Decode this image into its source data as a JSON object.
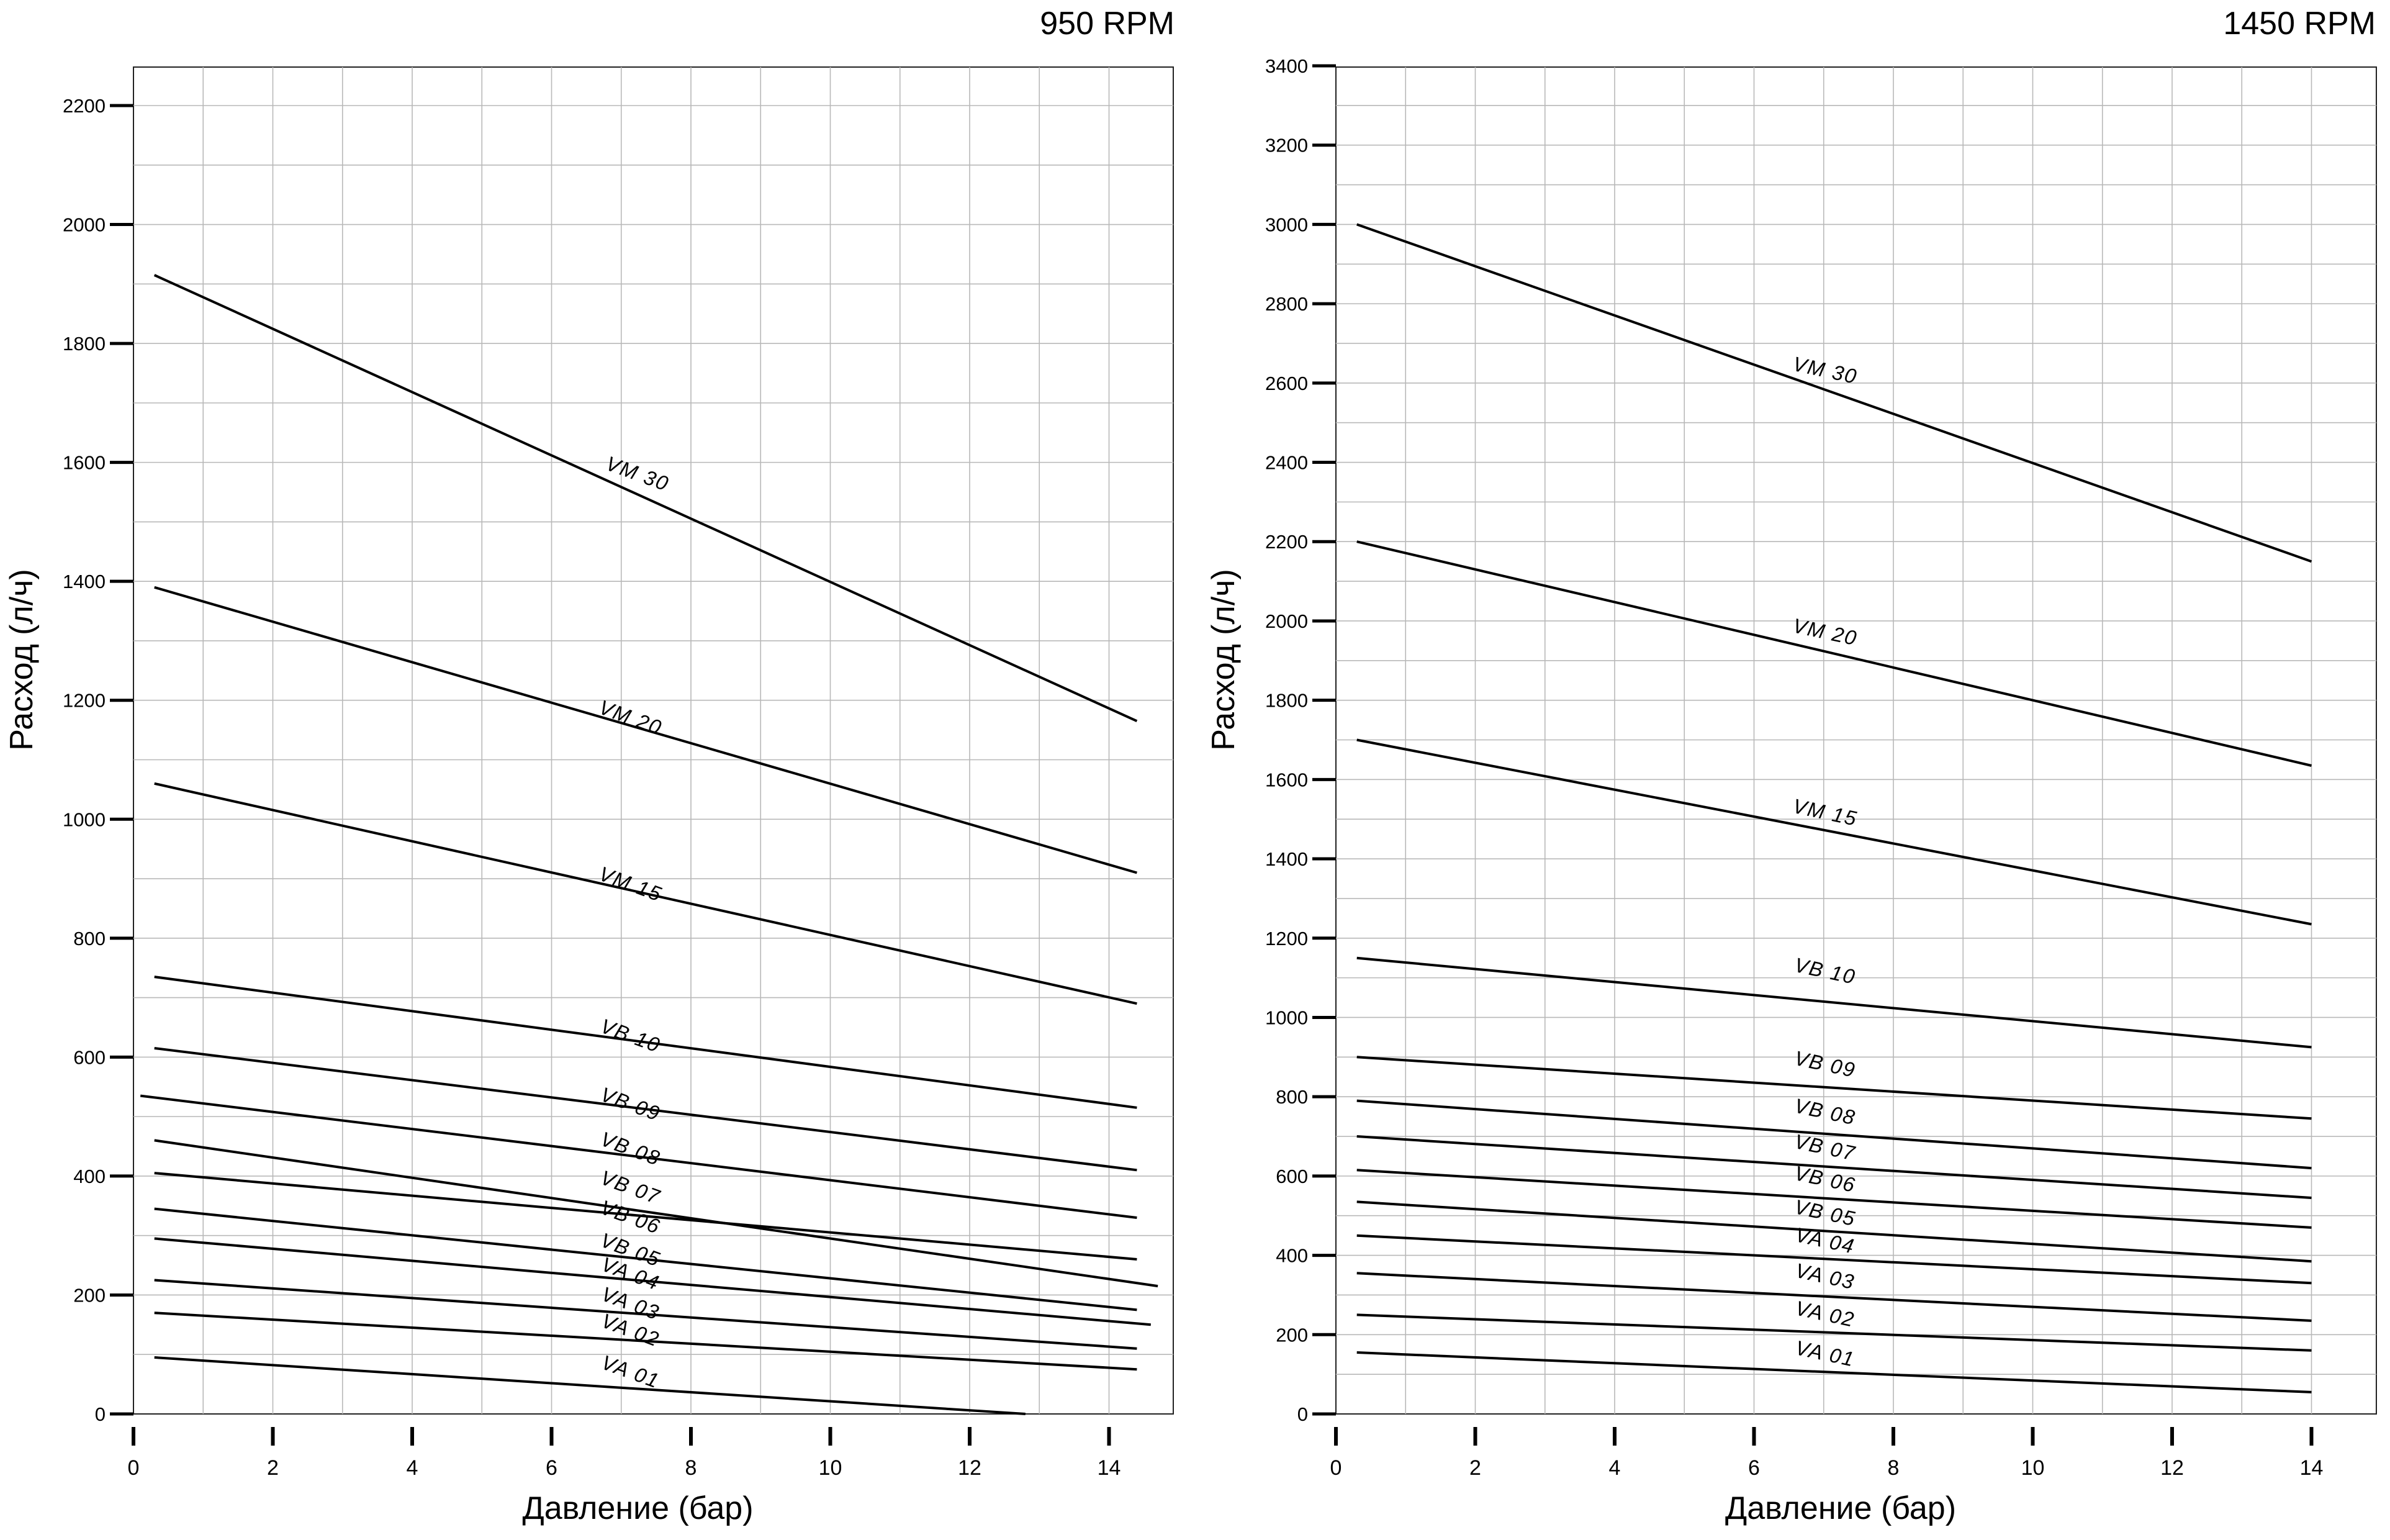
{
  "chart_data": [
    {
      "type": "line",
      "title": "950 RPM",
      "xlabel": "Давление (бар)",
      "ylabel": "Расход (л/ч)",
      "xlim": [
        0,
        15
      ],
      "ylim": [
        0,
        2280
      ],
      "xticks": [
        0,
        2,
        4,
        6,
        8,
        10,
        12,
        14
      ],
      "yticks": [
        0,
        200,
        400,
        600,
        800,
        1000,
        1200,
        1400,
        1600,
        1800,
        2000,
        2200
      ],
      "grid": true,
      "series": [
        {
          "name": "VM 30",
          "x": [
            0.3,
            14.4
          ],
          "y": [
            1915,
            1165
          ]
        },
        {
          "name": "VM 20",
          "x": [
            0.3,
            14.4
          ],
          "y": [
            1390,
            910
          ]
        },
        {
          "name": "VM 15",
          "x": [
            0.3,
            14.4
          ],
          "y": [
            1060,
            690
          ]
        },
        {
          "name": "VB 10",
          "x": [
            0.3,
            14.4
          ],
          "y": [
            735,
            515
          ]
        },
        {
          "name": "VB 09",
          "x": [
            0.3,
            14.4
          ],
          "y": [
            615,
            410
          ]
        },
        {
          "name": "VB 08",
          "x": [
            0.1,
            14.4
          ],
          "y": [
            535,
            330
          ]
        },
        {
          "name": "VB 07",
          "x": [
            0.3,
            14.7
          ],
          "y": [
            460,
            215
          ]
        },
        {
          "name": "VB 06",
          "x": [
            0.3,
            14.4
          ],
          "y": [
            405,
            260
          ]
        },
        {
          "name": "VB 05",
          "x": [
            0.3,
            14.4
          ],
          "y": [
            345,
            175
          ]
        },
        {
          "name": "VA 04",
          "x": [
            0.3,
            14.6
          ],
          "y": [
            295,
            150
          ]
        },
        {
          "name": "VA 03",
          "x": [
            0.3,
            14.4
          ],
          "y": [
            225,
            110
          ]
        },
        {
          "name": "VA 02",
          "x": [
            0.3,
            14.4
          ],
          "y": [
            170,
            75
          ]
        },
        {
          "name": "VA 01",
          "x": [
            0.3,
            12.8
          ],
          "y": [
            95,
            0
          ]
        }
      ],
      "labels": [
        {
          "text": "VM 30",
          "x": 7.2,
          "y": 1570
        },
        {
          "text": "VM 20",
          "x": 7.1,
          "y": 1160
        },
        {
          "text": "VM 15",
          "x": 7.1,
          "y": 880
        },
        {
          "text": "VB 10",
          "x": 7.1,
          "y": 625
        },
        {
          "text": "VB 09",
          "x": 7.1,
          "y": 510
        },
        {
          "text": "VB 08",
          "x": 7.1,
          "y": 435
        },
        {
          "text": "VB 07",
          "x": 7.1,
          "y": 370
        },
        {
          "text": "VB 06",
          "x": 7.1,
          "y": 320
        },
        {
          "text": "VB 05",
          "x": 7.1,
          "y": 265
        },
        {
          "text": "VA 04",
          "x": 7.1,
          "y": 225
        },
        {
          "text": "VA 03",
          "x": 7.1,
          "y": 175
        },
        {
          "text": "VA 02",
          "x": 7.1,
          "y": 130
        },
        {
          "text": "VA 01",
          "x": 7.1,
          "y": 60
        }
      ]
    },
    {
      "type": "line",
      "title": "1450 RPM",
      "xlabel": "Давление (бар)",
      "ylabel": "Расход (л/ч)",
      "xlim": [
        0,
        15
      ],
      "ylim": [
        0,
        3400
      ],
      "xticks": [
        0,
        2,
        4,
        6,
        8,
        10,
        12,
        14
      ],
      "yticks": [
        0,
        200,
        400,
        600,
        800,
        1000,
        1200,
        1400,
        1600,
        1800,
        2000,
        2200,
        2400,
        2600,
        2800,
        3000,
        3200,
        3400
      ],
      "grid": true,
      "series": [
        {
          "name": "VM 30",
          "x": [
            0.3,
            14.0
          ],
          "y": [
            3000,
            2150
          ]
        },
        {
          "name": "VM 20",
          "x": [
            0.3,
            14.0
          ],
          "y": [
            2200,
            1635
          ]
        },
        {
          "name": "VM 15",
          "x": [
            0.3,
            14.0
          ],
          "y": [
            1700,
            1235
          ]
        },
        {
          "name": "VB 10",
          "x": [
            0.3,
            14.0
          ],
          "y": [
            1150,
            925
          ]
        },
        {
          "name": "VB 09",
          "x": [
            0.3,
            14.0
          ],
          "y": [
            900,
            745
          ]
        },
        {
          "name": "VB 08",
          "x": [
            0.3,
            14.0
          ],
          "y": [
            790,
            620
          ]
        },
        {
          "name": "VB 07",
          "x": [
            0.3,
            14.0
          ],
          "y": [
            700,
            545
          ]
        },
        {
          "name": "VB 06",
          "x": [
            0.3,
            14.0
          ],
          "y": [
            615,
            470
          ]
        },
        {
          "name": "VB 05",
          "x": [
            0.3,
            14.0
          ],
          "y": [
            535,
            385
          ]
        },
        {
          "name": "VA 04",
          "x": [
            0.3,
            14.0
          ],
          "y": [
            450,
            330
          ]
        },
        {
          "name": "VA 03",
          "x": [
            0.3,
            14.0
          ],
          "y": [
            355,
            235
          ]
        },
        {
          "name": "VA 02",
          "x": [
            0.3,
            14.0
          ],
          "y": [
            250,
            160
          ]
        },
        {
          "name": "VA 01",
          "x": [
            0.3,
            14.0
          ],
          "y": [
            155,
            55
          ]
        }
      ],
      "labels": [
        {
          "text": "VM 30",
          "x": 7.0,
          "y": 2615
        },
        {
          "text": "VM 20",
          "x": 7.0,
          "y": 1955
        },
        {
          "text": "VM 15",
          "x": 7.0,
          "y": 1500
        },
        {
          "text": "VB 10",
          "x": 7.0,
          "y": 1100
        },
        {
          "text": "VB 09",
          "x": 7.0,
          "y": 865
        },
        {
          "text": "VB 08",
          "x": 7.0,
          "y": 745
        },
        {
          "text": "VB 07",
          "x": 7.0,
          "y": 655
        },
        {
          "text": "VB 06",
          "x": 7.0,
          "y": 575
        },
        {
          "text": "VB 05",
          "x": 7.0,
          "y": 490
        },
        {
          "text": "VA 04",
          "x": 7.0,
          "y": 420
        },
        {
          "text": "VA 03",
          "x": 7.0,
          "y": 330
        },
        {
          "text": "VA 02",
          "x": 7.0,
          "y": 235
        },
        {
          "text": "VA 01",
          "x": 7.0,
          "y": 135
        }
      ]
    }
  ]
}
